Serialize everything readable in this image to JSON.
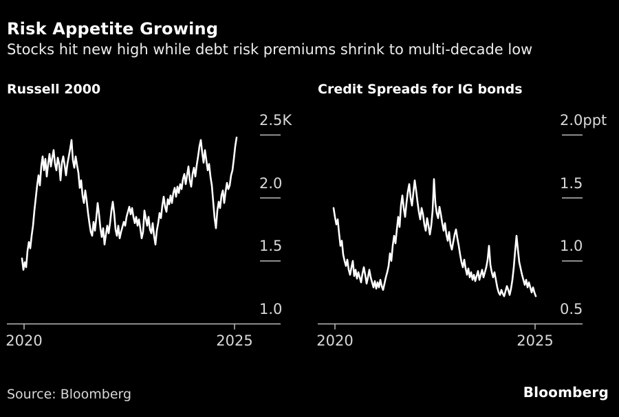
{
  "page": {
    "title": "Risk Appetite Growing",
    "subtitle": "Stocks hit new high while debt risk premiums shrink to multi-decade low",
    "source": "Source: Bloomberg",
    "brand": "Bloomberg"
  },
  "colors": {
    "background": "#000000",
    "title": "#ffffff",
    "subtitle": "#ededed",
    "tick_label": "#d9d9d9",
    "axis": "#bdbdbd",
    "line": "#ffffff"
  },
  "chart_data": [
    {
      "type": "line",
      "title": "Russell 2000",
      "y_unit": "K",
      "ylim": [
        1.0,
        2.5
      ],
      "y_ticks": [
        {
          "label": "2.5K",
          "value": 2.5
        },
        {
          "label": "2.0",
          "value": 2.0
        },
        {
          "label": "1.5",
          "value": 1.5
        },
        {
          "label": "1.0",
          "value": 1.0
        }
      ],
      "x_ticks": [
        {
          "label": "2020"
        },
        {
          "label": "2025"
        }
      ],
      "legend": "none",
      "grid": "dashes-right-of-plot",
      "values": [
        1.52,
        1.43,
        1.49,
        1.45,
        1.58,
        1.65,
        1.6,
        1.7,
        1.78,
        1.9,
        2.0,
        2.1,
        2.18,
        2.1,
        2.25,
        2.33,
        2.22,
        2.31,
        2.17,
        2.27,
        2.35,
        2.25,
        2.32,
        2.38,
        2.27,
        2.22,
        2.32,
        2.27,
        2.14,
        2.28,
        2.33,
        2.26,
        2.18,
        2.27,
        2.33,
        2.39,
        2.46,
        2.3,
        2.24,
        2.33,
        2.26,
        2.2,
        2.08,
        2.14,
        2.02,
        1.96,
        2.06,
        1.98,
        1.88,
        1.8,
        1.73,
        1.7,
        1.81,
        1.74,
        1.84,
        1.96,
        1.87,
        1.76,
        1.69,
        1.76,
        1.63,
        1.71,
        1.78,
        1.72,
        1.8,
        1.9,
        1.97,
        1.88,
        1.75,
        1.7,
        1.78,
        1.68,
        1.73,
        1.77,
        1.81,
        1.78,
        1.85,
        1.89,
        1.93,
        1.87,
        1.92,
        1.85,
        1.8,
        1.85,
        1.78,
        1.83,
        1.76,
        1.68,
        1.73,
        1.9,
        1.84,
        1.78,
        1.85,
        1.75,
        1.72,
        1.8,
        1.7,
        1.63,
        1.74,
        1.8,
        1.88,
        1.84,
        1.94,
        2.01,
        1.93,
        1.89,
        1.99,
        1.95,
        2.02,
        1.96,
        2.04,
        2.08,
        2.01,
        2.09,
        2.04,
        2.11,
        2.07,
        2.15,
        2.19,
        2.11,
        2.18,
        2.25,
        2.14,
        2.09,
        2.19,
        2.24,
        2.17,
        2.26,
        2.33,
        2.41,
        2.46,
        2.36,
        2.28,
        2.38,
        2.3,
        2.22,
        2.27,
        2.17,
        2.1,
        1.97,
        1.84,
        1.76,
        1.9,
        1.97,
        1.92,
        2.02,
        2.06,
        1.96,
        2.05,
        2.12,
        2.07,
        2.1,
        2.18,
        2.22,
        2.31,
        2.41,
        2.48
      ]
    },
    {
      "type": "line",
      "title": "Credit Spreads for IG bonds",
      "y_unit": "ppt",
      "ylim": [
        0.5,
        2.0
      ],
      "y_ticks": [
        {
          "label": "2.0ppt",
          "value": 2.0
        },
        {
          "label": "1.5",
          "value": 1.5
        },
        {
          "label": "1.0",
          "value": 1.0
        },
        {
          "label": "0.5",
          "value": 0.5
        }
      ],
      "x_ticks": [
        {
          "label": "2020"
        },
        {
          "label": "2025"
        }
      ],
      "legend": "none",
      "grid": "dashes-right-of-plot",
      "values": [
        1.42,
        1.35,
        1.29,
        1.33,
        1.22,
        1.12,
        1.16,
        1.05,
        1.0,
        0.96,
        1.01,
        0.93,
        0.89,
        0.95,
        1.0,
        0.88,
        0.93,
        0.86,
        0.91,
        0.87,
        0.83,
        0.9,
        0.95,
        0.89,
        0.82,
        0.87,
        0.93,
        0.87,
        0.83,
        0.79,
        0.84,
        0.78,
        0.83,
        0.79,
        0.85,
        0.8,
        0.77,
        0.82,
        0.87,
        0.91,
        0.96,
        1.06,
        1.0,
        1.12,
        1.2,
        1.14,
        1.25,
        1.35,
        1.27,
        1.44,
        1.52,
        1.42,
        1.35,
        1.46,
        1.55,
        1.61,
        1.5,
        1.44,
        1.54,
        1.64,
        1.56,
        1.47,
        1.39,
        1.33,
        1.42,
        1.37,
        1.29,
        1.24,
        1.34,
        1.28,
        1.21,
        1.28,
        1.4,
        1.65,
        1.46,
        1.38,
        1.34,
        1.43,
        1.37,
        1.3,
        1.24,
        1.3,
        1.21,
        1.16,
        1.23,
        1.13,
        1.09,
        1.15,
        1.21,
        1.25,
        1.18,
        1.12,
        1.05,
        0.99,
        0.95,
        1.01,
        0.94,
        0.89,
        0.94,
        0.87,
        0.91,
        0.85,
        0.89,
        0.84,
        0.88,
        0.92,
        0.85,
        0.89,
        0.93,
        0.87,
        0.91,
        0.95,
        1.01,
        1.12,
        0.97,
        0.91,
        0.87,
        0.91,
        0.85,
        0.79,
        0.75,
        0.73,
        0.77,
        0.74,
        0.72,
        0.76,
        0.8,
        0.77,
        0.73,
        0.78,
        0.85,
        0.95,
        1.08,
        1.2,
        1.09,
        0.99,
        0.94,
        0.89,
        0.85,
        0.81,
        0.85,
        0.79,
        0.83,
        0.79,
        0.75,
        0.79,
        0.75,
        0.72
      ]
    }
  ]
}
